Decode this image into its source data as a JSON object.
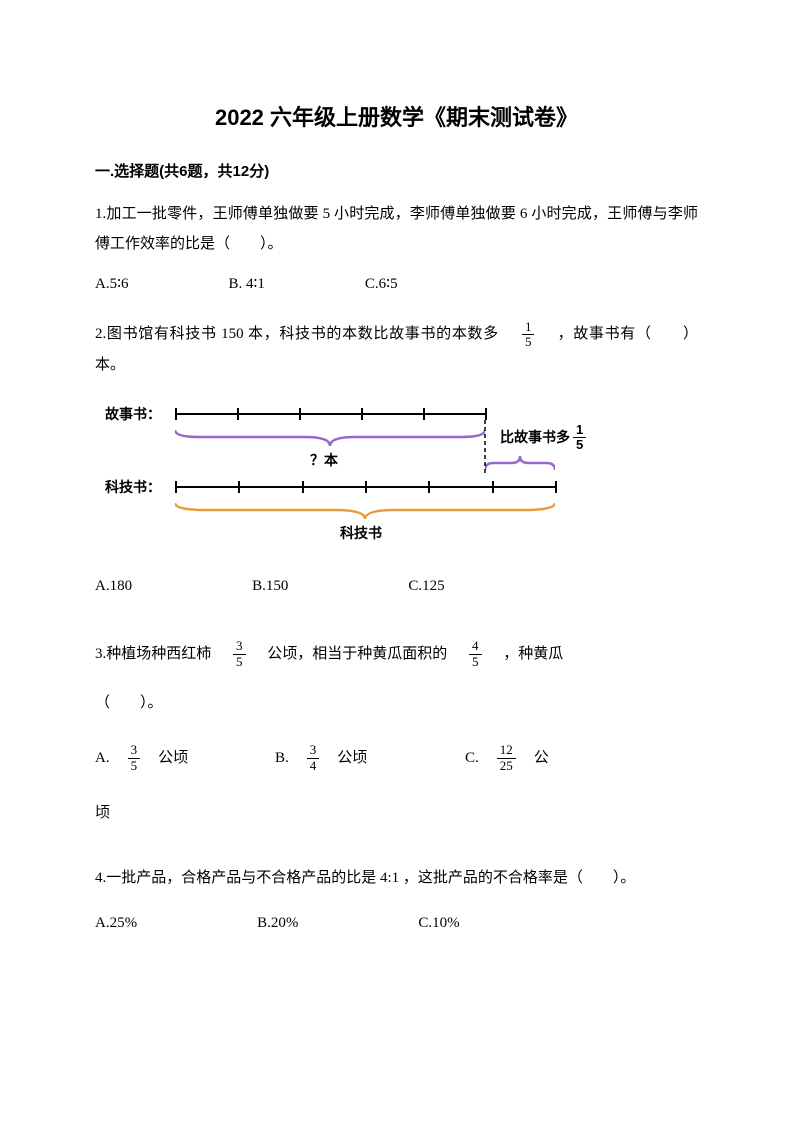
{
  "title": "2022 六年级上册数学《期末测试卷》",
  "section1": {
    "heading": "一.选择题(共6题，共12分)",
    "q1": {
      "text": "1.加工一批零件，王师傅单独做要 5 小时完成，李师傅单独做要 6 小时完成，王师傅与李师傅工作效率的比是（　　）。",
      "optA": "A.5∶6",
      "optB": "B. 4∶1",
      "optC": "C.6∶5"
    },
    "q2": {
      "text_before": "2.图书馆有科技书 150 本，科技书的本数比故事书的本数多　",
      "frac_num": "1",
      "frac_den": "5",
      "text_after": "　，故事书有（　　）本。",
      "diagram": {
        "label_story": "故事书：",
        "label_tech": "科技书：",
        "label_question": "？本",
        "label_extra_text": "比故事书多",
        "label_extra_frac_num": "1",
        "label_extra_frac_den": "5",
        "label_bottom": "科技书",
        "story_bar_width": 310,
        "tech_bar_width": 380,
        "story_ticks": 6,
        "tech_ticks": 7,
        "colors": {
          "line": "#000000",
          "brace_purple": "#9966cc",
          "brace_orange": "#e89b3e"
        }
      },
      "optA": "A.180",
      "optB": "B.150",
      "optC": "C.125"
    },
    "q3": {
      "text_p1": "3.种植场种西红柿　",
      "frac1_num": "3",
      "frac1_den": "5",
      "text_p2": "　公顷，相当于种黄瓜面积的　",
      "frac2_num": "4",
      "frac2_den": "5",
      "text_p3": "　，种黄瓜",
      "text_p4": "（　　）。",
      "optA_prefix": "A.　",
      "optA_num": "3",
      "optA_den": "5",
      "optA_suffix": "　公顷",
      "optB_prefix": "B.　",
      "optB_num": "3",
      "optB_den": "4",
      "optB_suffix": "　公顷",
      "optC_prefix": "C.　",
      "optC_num": "12",
      "optC_den": "25",
      "optC_suffix": "　公",
      "optC_line2": "顷"
    },
    "q4": {
      "text": "4.一批产品，合格产品与不合格产品的比是 4:1 ，这批产品的不合格率是（　　）。",
      "optA": "A.25%",
      "optB": "B.20%",
      "optC": "C.10%"
    }
  }
}
